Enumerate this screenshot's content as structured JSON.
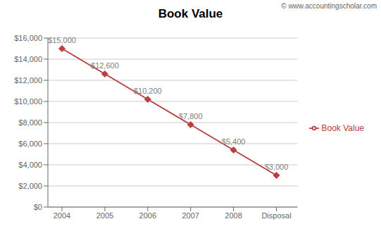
{
  "chart_data": {
    "type": "line",
    "title": "Book Value",
    "categories": [
      "2004",
      "2005",
      "2006",
      "2007",
      "2008",
      "Disposal"
    ],
    "series": [
      {
        "name": "Book Value",
        "color": "#b94040",
        "marker": "diamond",
        "values": [
          15000,
          12600,
          10200,
          7800,
          5400,
          3000
        ],
        "value_labels": [
          "$15,000",
          "$12,600",
          "$10,200",
          "$7,800",
          "$5,400",
          "$3,000"
        ]
      }
    ],
    "data_labels": true,
    "ylim": [
      0,
      16000
    ],
    "yticks": [
      {
        "value": 0,
        "label": "$0"
      },
      {
        "value": 2000,
        "label": "$2,000"
      },
      {
        "value": 4000,
        "label": "$4,000"
      },
      {
        "value": 6000,
        "label": "$6,000"
      },
      {
        "value": 8000,
        "label": "$8,000"
      },
      {
        "value": 10000,
        "label": "$10,000"
      },
      {
        "value": 12000,
        "label": "$12,000"
      },
      {
        "value": 14000,
        "label": "$14,000"
      },
      {
        "value": 16000,
        "label": "$16,000"
      }
    ],
    "grid": true,
    "legend": "right",
    "annotations": [
      "© www.accountingscholar.com"
    ]
  }
}
